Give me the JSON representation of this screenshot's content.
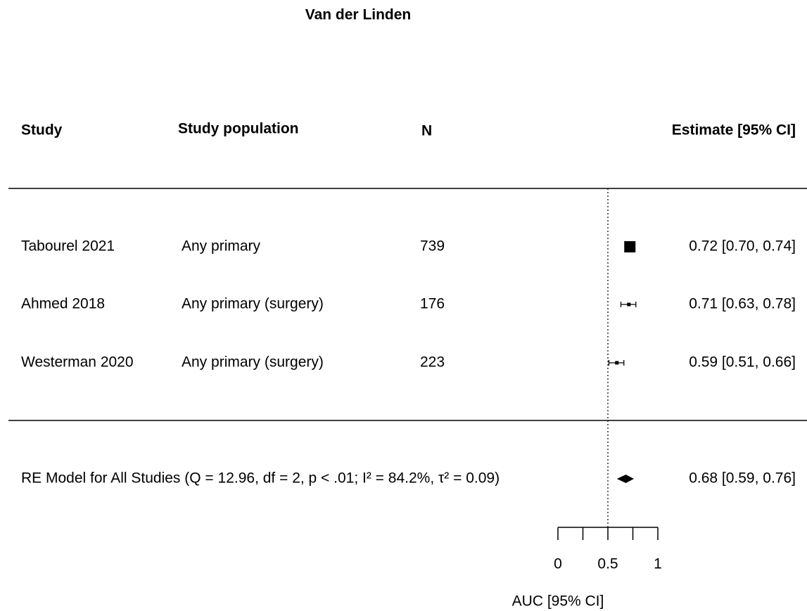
{
  "chart_data": {
    "type": "forest",
    "title": "Van der Linden",
    "columns": [
      "Study",
      "Study population",
      "N",
      "Estimate [95% CI]"
    ],
    "studies": [
      {
        "name": "Tabourel 2021",
        "population": "Any primary",
        "n": 739,
        "estimate": 0.72,
        "ci_lower": 0.7,
        "ci_upper": 0.74,
        "label": "0.72 [0.70, 0.74]"
      },
      {
        "name": "Ahmed 2018",
        "population": "Any primary (surgery)",
        "n": 176,
        "estimate": 0.71,
        "ci_lower": 0.63,
        "ci_upper": 0.78,
        "label": "0.71 [0.63, 0.78]"
      },
      {
        "name": "Westerman 2020",
        "population": "Any primary (surgery)",
        "n": 223,
        "estimate": 0.59,
        "ci_lower": 0.51,
        "ci_upper": 0.66,
        "label": "0.59 [0.51, 0.66]"
      }
    ],
    "summary": {
      "name": "RE Model for All Studies (Q = 12.96, df = 2, p < .01; I² = 84.2%, τ² = 0.09)",
      "estimate": 0.68,
      "ci_lower": 0.59,
      "ci_upper": 0.76,
      "label": "0.68 [0.59, 0.76]"
    },
    "xlim": [
      0,
      1
    ],
    "xticks": [
      0,
      0.5,
      1
    ],
    "minor_xticks": [
      0.25,
      0.75
    ],
    "reference_line": 0.5,
    "xlabel": "AUC [95% CI]",
    "color": "#000000"
  }
}
